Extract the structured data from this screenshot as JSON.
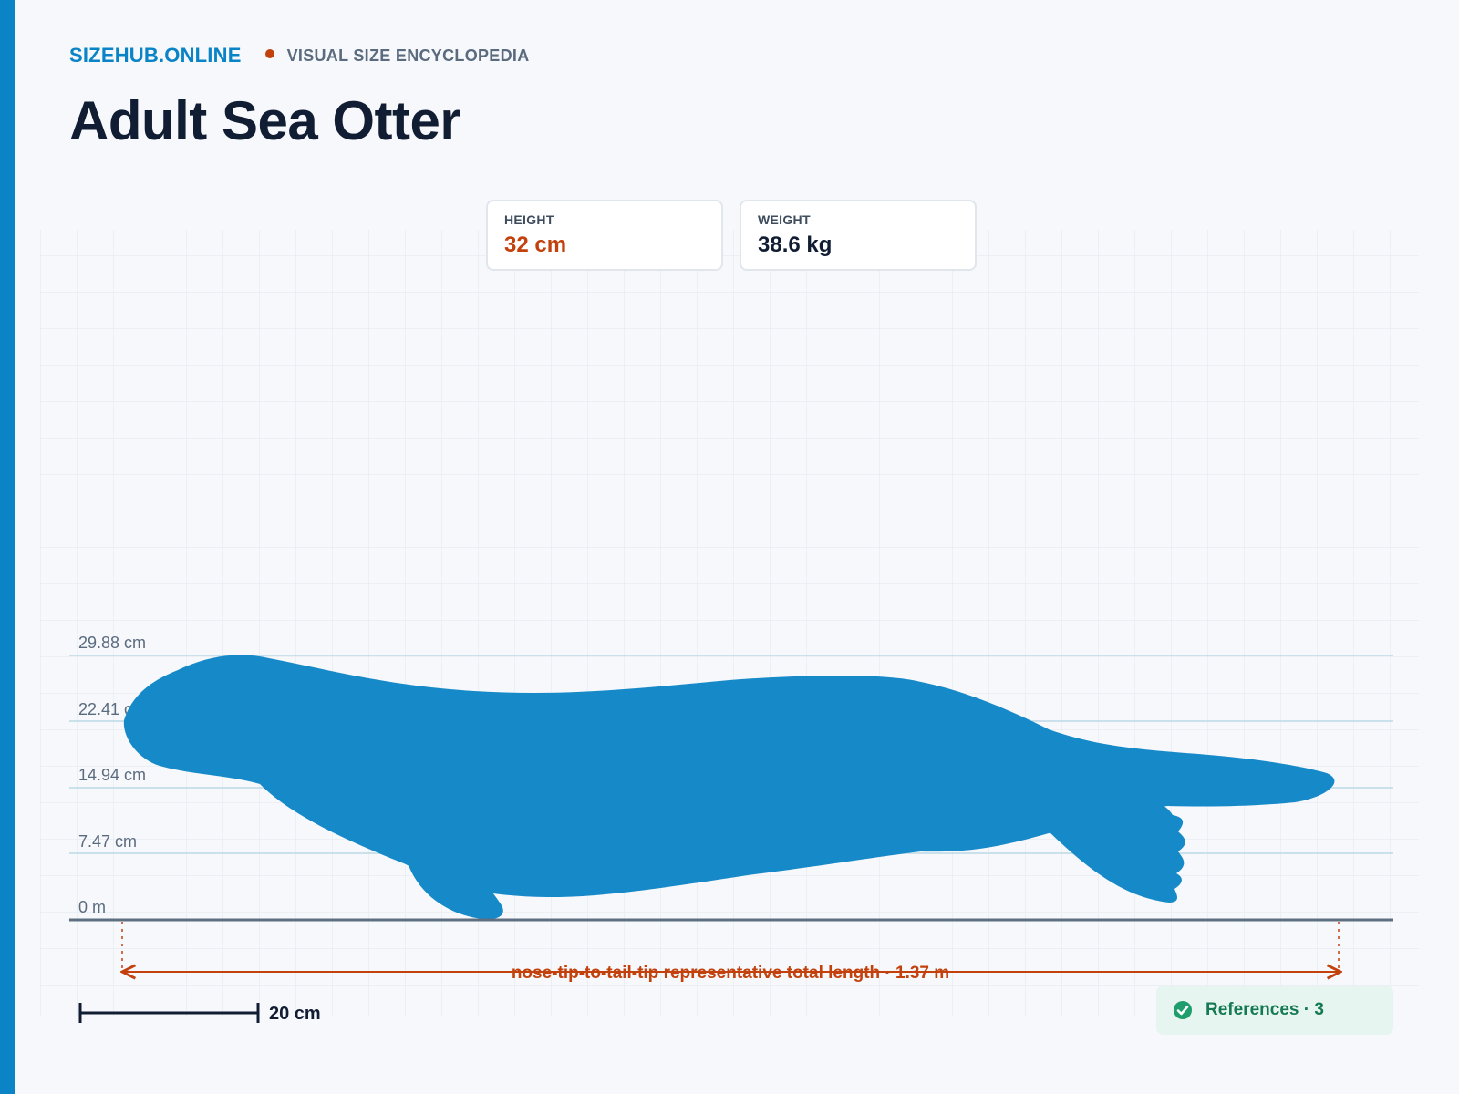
{
  "header": {
    "brand": "SIZEHUB.ONLINE",
    "tagline": "VISUAL SIZE ENCYCLOPEDIA",
    "title": "Adult Sea Otter"
  },
  "stats": {
    "height": {
      "label": "HEIGHT",
      "value": "32 cm"
    },
    "weight": {
      "label": "WEIGHT",
      "value": "38.6 kg"
    }
  },
  "diagram": {
    "height_ticks": [
      "0 m",
      "7.47 cm",
      "14.94 cm",
      "22.41 cm",
      "29.88 cm"
    ],
    "length_label": "nose-tip-to-tail-tip representative total length · 1.37 m",
    "scale_bar_label": "20 cm"
  },
  "references": {
    "label": "References · 3"
  },
  "colors": {
    "brand": "#0a84c6",
    "silhouette": "#1689c8",
    "accent_orange": "#c2410c",
    "height_value": "#c2410c",
    "weight_value": "#111d33",
    "success": "#157a54"
  },
  "icons": {
    "brand_separator": "dot",
    "references": "check-circle-icon"
  }
}
